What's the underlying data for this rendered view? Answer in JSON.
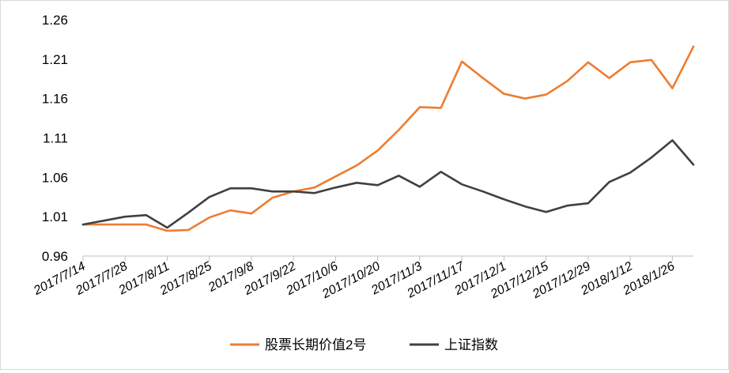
{
  "chart_data": {
    "type": "line",
    "title": "",
    "xlabel": "",
    "ylabel": "",
    "ylim": [
      0.96,
      1.26
    ],
    "yticks": [
      "0.96",
      "1.01",
      "1.06",
      "1.11",
      "1.16",
      "1.21",
      "1.26"
    ],
    "x": [
      "2017/7/14",
      "2017/7/21",
      "2017/7/28",
      "2017/8/4",
      "2017/8/11",
      "2017/8/18",
      "2017/8/25",
      "2017/9/1",
      "2017/9/8",
      "2017/9/15",
      "2017/9/22",
      "2017/9/29",
      "2017/10/6",
      "2017/10/13",
      "2017/10/20",
      "2017/10/27",
      "2017/11/3",
      "2017/11/10",
      "2017/11/17",
      "2017/11/24",
      "2017/12/1",
      "2017/12/8",
      "2017/12/15",
      "2017/12/22",
      "2017/12/29",
      "2018/1/5",
      "2018/1/12",
      "2018/1/19",
      "2018/1/26",
      "2018/2/2"
    ],
    "xtick_labels": [
      "2017/7/14",
      "2017/7/28",
      "2017/8/11",
      "2017/8/25",
      "2017/9/8",
      "2017/9/22",
      "2017/10/6",
      "2017/10/20",
      "2017/11/3",
      "2017/11/17",
      "2017/12/1",
      "2017/12/15",
      "2017/12/29",
      "2018/1/12",
      "2018/1/26"
    ],
    "series": [
      {
        "name": "股票长期价值2号",
        "color": "#ED7D31",
        "values": [
          1.0,
          1.0,
          1.0,
          1.0,
          0.992,
          0.993,
          1.009,
          1.018,
          1.014,
          1.034,
          1.042,
          1.047,
          1.061,
          1.075,
          1.094,
          1.12,
          1.149,
          1.148,
          1.207,
          1.186,
          1.166,
          1.16,
          1.165,
          1.182,
          1.206,
          1.186,
          1.206,
          1.209,
          1.173,
          1.226
        ]
      },
      {
        "name": "上证指数",
        "color": "#404040",
        "values": [
          1.0,
          1.005,
          1.01,
          1.012,
          0.996,
          1.015,
          1.035,
          1.046,
          1.046,
          1.042,
          1.042,
          1.04,
          1.047,
          1.053,
          1.05,
          1.062,
          1.048,
          1.067,
          1.051,
          1.042,
          1.032,
          1.023,
          1.016,
          1.024,
          1.027,
          1.054,
          1.066,
          1.085,
          1.107,
          1.076
        ]
      }
    ],
    "grid": false,
    "legend_position": "bottom"
  },
  "legend": {
    "items": [
      {
        "label": "股票长期价值2号",
        "color": "#ED7D31"
      },
      {
        "label": "上证指数",
        "color": "#404040"
      }
    ]
  }
}
